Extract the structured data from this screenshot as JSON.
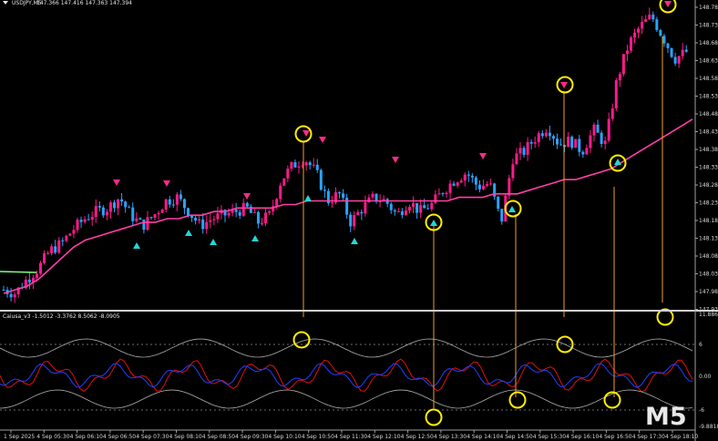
{
  "symbol_header": "USDJPY,M5",
  "ohlc_header": "147.366 147.416 147.363 147.394",
  "indicator_header": "Caiusa_v3 -1.5012 -3.3762 8.5062 -8.0905",
  "timeframe_watermark": "M5",
  "price_axis": {
    "labels": [
      "148.785",
      "148.735",
      "148.685",
      "148.635",
      "148.585",
      "148.535",
      "148.485",
      "148.435",
      "148.385",
      "148.335",
      "148.285",
      "148.235",
      "148.185",
      "148.135",
      "148.085",
      "148.035",
      "147.985",
      "147.935"
    ]
  },
  "indicator_axis": {
    "labels": [
      "11.8865",
      "6",
      "0.00",
      "-6",
      "-9.8818"
    ]
  },
  "time_axis": {
    "labels": [
      "1 Sep 2025",
      "4 Sep 05:30",
      "4 Sep 06:10",
      "4 Sep 06:50",
      "4 Sep 07:30",
      "4 Sep 08:10",
      "4 Sep 08:50",
      "4 Sep 09:30",
      "4 Sep 10:10",
      "4 Sep 10:50",
      "4 Sep 11:30",
      "4 Sep 12:10",
      "4 Sep 12:50",
      "4 Sep 13:30",
      "4 Sep 14:10",
      "4 Sep 14:50",
      "4 Sep 15:30",
      "4 Sep 16:10",
      "4 Sep 16:50",
      "4 Sep 17:30",
      "4 Sep 18:10"
    ]
  },
  "colors": {
    "background": "#000000",
    "bull_candle": "#ff1a8c",
    "bear_candle": "#2aa3ff",
    "moving_average": "#ff3fa8",
    "sell_arrow": "#ff2a8a",
    "buy_arrow": "#22d6d6",
    "highlight_circle": "#ffee00",
    "connector_line": "#f0a020",
    "osc_red": "#e01010",
    "osc_blue": "#2040ff",
    "osc_band": "#b0b0b0"
  },
  "signals": {
    "sell_arrows": 8,
    "buy_arrows": 7
  },
  "chart_data": {
    "type": "line",
    "title": "USDJPY,M5",
    "ylim": [
      147.935,
      148.785
    ],
    "series": [
      {
        "values": [
          147.99,
          147.98,
          148.02,
          148.05,
          148.1,
          148.12,
          148.16,
          148.19,
          148.21,
          148.22,
          148.25,
          148.2,
          148.17,
          148.2,
          148.24,
          148.25,
          148.21,
          148.17,
          148.19,
          148.2,
          148.21,
          148.22,
          148.18,
          148.2,
          148.3,
          148.34,
          148.36,
          148.32,
          148.24,
          148.26,
          148.18,
          148.22,
          148.25,
          148.24,
          148.2,
          148.24,
          148.21,
          148.23,
          148.27,
          148.3,
          148.32,
          148.28,
          148.29,
          148.18,
          148.36,
          148.38,
          148.42,
          148.45,
          148.4,
          148.41,
          148.38,
          148.44,
          148.4,
          148.58,
          148.68,
          148.73,
          148.76,
          148.7,
          148.64,
          148.66
        ]
      },
      {
        "values": [
          147.98,
          147.99,
          148.0,
          148.02,
          148.05,
          148.08,
          148.11,
          148.13,
          148.14,
          148.15,
          148.16,
          148.17,
          148.18,
          148.18,
          148.19,
          148.19,
          148.2,
          148.2,
          148.21,
          148.21,
          148.22,
          148.22,
          148.22,
          148.22,
          148.23,
          148.23,
          148.24,
          148.24,
          148.24,
          148.24,
          148.24,
          148.24,
          148.24,
          148.24,
          148.24,
          148.24,
          148.24,
          148.24,
          148.24,
          148.25,
          148.25,
          148.25,
          148.26,
          148.26,
          148.26,
          148.27,
          148.28,
          148.29,
          148.3,
          148.3,
          148.31,
          148.32,
          148.33,
          148.35,
          148.37,
          148.39,
          148.41,
          148.43,
          148.45,
          148.47
        ]
      }
    ]
  }
}
